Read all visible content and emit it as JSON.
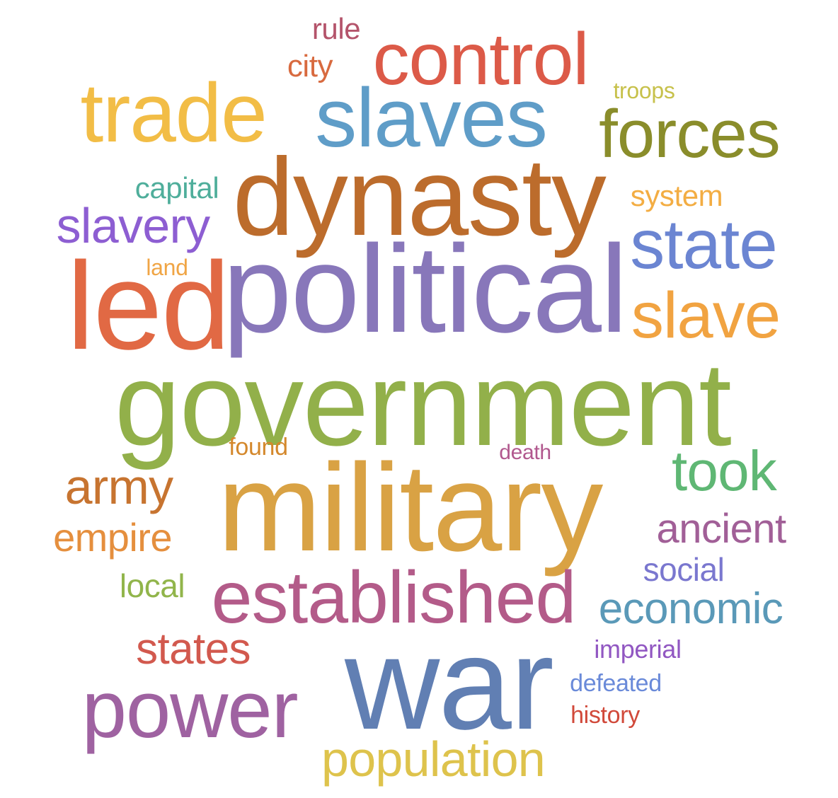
{
  "word_cloud": {
    "words": [
      {
        "text": "rule",
        "color": "#b4546b"
      },
      {
        "text": "city",
        "color": "#d86a3f"
      },
      {
        "text": "control",
        "color": "#dc5a48"
      },
      {
        "text": "trade",
        "color": "#f2bd46"
      },
      {
        "text": "slaves",
        "color": "#5f9dc8"
      },
      {
        "text": "troops",
        "color": "#c7c14b"
      },
      {
        "text": "forces",
        "color": "#8a8d2b"
      },
      {
        "text": "dynasty",
        "color": "#bc6c2c"
      },
      {
        "text": "capital",
        "color": "#4fae9b"
      },
      {
        "text": "system",
        "color": "#f3ad43"
      },
      {
        "text": "slavery",
        "color": "#8d5ed2"
      },
      {
        "text": "state",
        "color": "#6b85d2"
      },
      {
        "text": "land",
        "color": "#f0a545"
      },
      {
        "text": "led",
        "color": "#e16944"
      },
      {
        "text": "political",
        "color": "#8877ba"
      },
      {
        "text": "slave",
        "color": "#f1a341"
      },
      {
        "text": "government",
        "color": "#92b04a"
      },
      {
        "text": "found",
        "color": "#d4882c"
      },
      {
        "text": "death",
        "color": "#b1588e"
      },
      {
        "text": "took",
        "color": "#5fb774"
      },
      {
        "text": "army",
        "color": "#c77430"
      },
      {
        "text": "military",
        "color": "#d9a244"
      },
      {
        "text": "empire",
        "color": "#e58f3e"
      },
      {
        "text": "ancient",
        "color": "#a15f97"
      },
      {
        "text": "social",
        "color": "#7a77cf"
      },
      {
        "text": "local",
        "color": "#91b54b"
      },
      {
        "text": "established",
        "color": "#b35b89"
      },
      {
        "text": "economic",
        "color": "#5a99b8"
      },
      {
        "text": "states",
        "color": "#d2594e"
      },
      {
        "text": "imperial",
        "color": "#9157c2"
      },
      {
        "text": "war",
        "color": "#617fb3"
      },
      {
        "text": "power",
        "color": "#9f62a1"
      },
      {
        "text": "defeated",
        "color": "#6a8ad9"
      },
      {
        "text": "history",
        "color": "#d1493a"
      },
      {
        "text": "population",
        "color": "#dec34c"
      }
    ]
  }
}
